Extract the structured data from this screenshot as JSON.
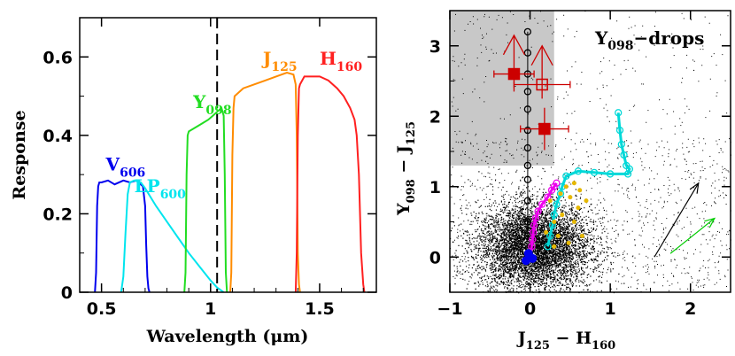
{
  "chart_data": [
    {
      "type": "line",
      "title": "",
      "xlabel": "Wavelength (μm)",
      "ylabel": "Response",
      "xlim": [
        0.4,
        1.76
      ],
      "ylim": [
        0,
        0.7
      ],
      "xticks": [
        0.5,
        1,
        1.5
      ],
      "xtick_labels": [
        "0.5",
        "1",
        "1.5"
      ],
      "yticks": [
        0,
        0.2,
        0.4,
        0.6
      ],
      "ytick_labels": [
        "0",
        "0.2",
        "0.4",
        "0.6"
      ],
      "vline": {
        "x": 1.03,
        "style": "dashed"
      },
      "series": [
        {
          "name": "V606",
          "base": "V",
          "sub": "606",
          "color": "#0000ee",
          "x": [
            0.47,
            0.475,
            0.48,
            0.485,
            0.49,
            0.5,
            0.53,
            0.56,
            0.6,
            0.63,
            0.66,
            0.69,
            0.7,
            0.705,
            0.71,
            0.715,
            0.72
          ],
          "y": [
            0,
            0.05,
            0.22,
            0.27,
            0.28,
            0.28,
            0.285,
            0.275,
            0.285,
            0.28,
            0.285,
            0.27,
            0.22,
            0.12,
            0.04,
            0.01,
            0
          ]
        },
        {
          "name": "LP600",
          "base": "LP",
          "sub": "600",
          "color": "#00e5ee",
          "x": [
            0.59,
            0.6,
            0.61,
            0.62,
            0.63,
            0.65,
            0.68,
            0.7,
            0.75,
            0.8,
            0.85,
            0.9,
            0.95,
            1.0,
            1.03,
            1.05,
            1.06
          ],
          "y": [
            0,
            0.04,
            0.15,
            0.25,
            0.28,
            0.285,
            0.28,
            0.265,
            0.22,
            0.18,
            0.14,
            0.1,
            0.065,
            0.03,
            0.012,
            0.004,
            0
          ]
        },
        {
          "name": "Y098",
          "base": "Y",
          "sub": "098",
          "color": "#22dd22",
          "x": [
            0.88,
            0.885,
            0.89,
            0.895,
            0.9,
            0.93,
            0.96,
            0.99,
            1.01,
            1.03,
            1.05,
            1.06,
            1.065,
            1.07,
            1.075
          ],
          "y": [
            0,
            0.05,
            0.3,
            0.4,
            0.41,
            0.42,
            0.43,
            0.44,
            0.45,
            0.46,
            0.47,
            0.45,
            0.3,
            0.05,
            0
          ]
        },
        {
          "name": "J125",
          "base": "J",
          "sub": "125",
          "color": "#ff8c00",
          "x": [
            1.09,
            1.095,
            1.1,
            1.105,
            1.11,
            1.15,
            1.2,
            1.25,
            1.3,
            1.35,
            1.38,
            1.39,
            1.395,
            1.4,
            1.405,
            1.41
          ],
          "y": [
            0,
            0.05,
            0.35,
            0.47,
            0.5,
            0.52,
            0.53,
            0.54,
            0.55,
            0.56,
            0.555,
            0.53,
            0.4,
            0.1,
            0.02,
            0
          ]
        },
        {
          "name": "H160",
          "base": "H",
          "sub": "160",
          "color": "#ff2020",
          "x": [
            1.39,
            1.395,
            1.4,
            1.405,
            1.41,
            1.43,
            1.46,
            1.5,
            1.54,
            1.58,
            1.61,
            1.64,
            1.66,
            1.67,
            1.68,
            1.69,
            1.7,
            1.705
          ],
          "y": [
            0,
            0.1,
            0.4,
            0.52,
            0.53,
            0.55,
            0.55,
            0.55,
            0.54,
            0.52,
            0.5,
            0.47,
            0.44,
            0.4,
            0.3,
            0.1,
            0.02,
            0
          ]
        }
      ]
    },
    {
      "type": "scatter",
      "title": "",
      "label": "Y098-drops",
      "label_base": "Y",
      "label_sub": "098",
      "label_tail": "−drops",
      "xlabel_parts": [
        "J",
        "125",
        " − H",
        "160"
      ],
      "ylabel_parts": [
        "Y",
        "098",
        " − J",
        "125"
      ],
      "xlim": [
        -1,
        2.5
      ],
      "ylim": [
        -0.5,
        3.5
      ],
      "xticks": [
        -1,
        0,
        1,
        2
      ],
      "xtick_labels": [
        "−1",
        "0",
        "1",
        "2"
      ],
      "yticks": [
        0,
        1,
        2,
        3
      ],
      "ytick_labels": [
        "0",
        "1",
        "2",
        "3"
      ],
      "selection_region": {
        "x_max": 0.3,
        "y_min": 1.3,
        "color": "#c8c8c8"
      },
      "field_points_note": "dense black cloud of field galaxies centered near (0.0, 0.2)",
      "dropout_candidates": [
        {
          "x": -0.2,
          "y": 2.6,
          "xerr": 0.25,
          "yerr_low": 0.25,
          "lower_limit": true,
          "filled": true
        },
        {
          "x": 0.15,
          "y": 2.45,
          "xerr": 0.35,
          "yerr_low": 0.2,
          "lower_limit": true,
          "filled": false
        },
        {
          "x": 0.18,
          "y": 1.82,
          "xerr": 0.3,
          "yerr_low": 0.3,
          "lower_limit": false,
          "filled": true
        }
      ],
      "tracks": [
        {
          "name": "black-open-circles",
          "color": "#000000",
          "x": [
            -0.03,
            -0.03,
            -0.03,
            -0.03,
            -0.03,
            -0.03,
            -0.03,
            -0.03,
            -0.03,
            -0.03,
            -0.03,
            -0.03
          ],
          "y": [
            3.2,
            2.9,
            2.6,
            2.35,
            2.1,
            1.8,
            1.55,
            1.3,
            1.1,
            0.8,
            0.5,
            0.3
          ]
        },
        {
          "name": "cyan-open-circles",
          "color": "#00d8d8",
          "x": [
            1.1,
            1.12,
            1.14,
            1.17,
            1.2,
            1.24,
            1.22,
            1.0,
            0.8,
            0.6,
            0.45,
            0.4,
            0.38,
            0.33,
            0.3,
            0.28,
            0.25,
            0.22
          ],
          "y": [
            2.05,
            1.8,
            1.6,
            1.45,
            1.3,
            1.25,
            1.18,
            1.18,
            1.2,
            1.22,
            1.15,
            1.0,
            0.9,
            0.75,
            0.6,
            0.45,
            0.3,
            0.15
          ]
        },
        {
          "name": "magenta-open-circles",
          "color": "#ee00ee",
          "x": [
            0.33,
            0.3,
            0.27,
            0.22,
            0.15,
            0.1,
            0.07,
            0.05,
            0.04,
            0.03,
            0.02,
            0.0
          ],
          "y": [
            1.05,
            1.0,
            0.95,
            0.85,
            0.75,
            0.65,
            0.55,
            0.45,
            0.35,
            0.25,
            0.15,
            0.0
          ]
        },
        {
          "name": "gold-points",
          "color": "#e6b800",
          "x": [
            0.45,
            0.55,
            0.62,
            0.5,
            0.38,
            0.25,
            0.6,
            0.7,
            0.4,
            0.3,
            0.55,
            0.2,
            0.35,
            0.65,
            0.48,
            0.3
          ],
          "y": [
            1.0,
            1.05,
            0.95,
            0.85,
            0.9,
            0.8,
            0.7,
            0.8,
            0.6,
            0.5,
            0.5,
            0.35,
            0.3,
            0.3,
            0.2,
            0.15
          ]
        },
        {
          "name": "blue-filled",
          "color": "#0000ee",
          "x": [
            -0.05,
            0.0,
            -0.02,
            0.03
          ],
          "y": [
            -0.05,
            0.0,
            0.05,
            -0.02
          ]
        }
      ],
      "vectors": [
        {
          "color": "#000000",
          "x0": 1.55,
          "y0": -0.0,
          "x1": 2.1,
          "y1": 1.05
        },
        {
          "color": "#00cc00",
          "x0": 1.75,
          "y0": 0.05,
          "x1": 2.3,
          "y1": 0.55
        }
      ]
    }
  ]
}
